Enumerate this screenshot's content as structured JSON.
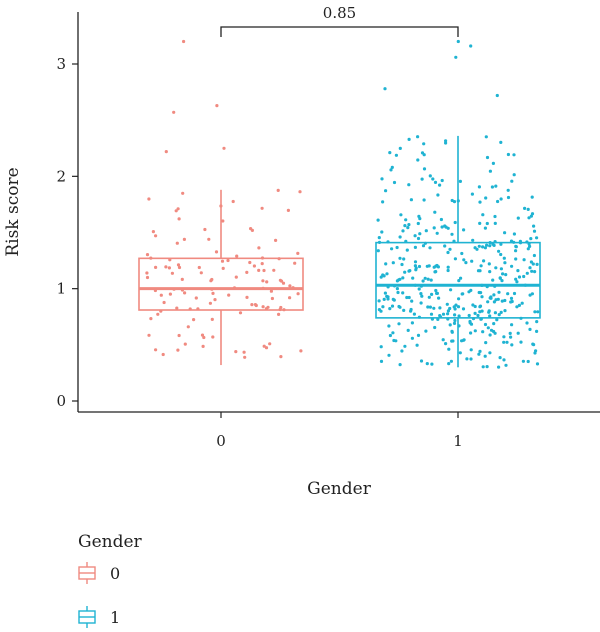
{
  "chart_data": {
    "type": "boxplot",
    "xlabel": "Gender",
    "ylabel": "Risk score",
    "categories": [
      "0",
      "1"
    ],
    "ylim": [
      -0.1,
      3.45
    ],
    "yticks": [
      0,
      1,
      2,
      3
    ],
    "grid": false,
    "legend": {
      "title": "Gender",
      "placement": "bottom-left",
      "entries": [
        "0",
        "1"
      ]
    },
    "colors": {
      "0": "#f08a80",
      "1": "#1fb3d2"
    },
    "boxes": [
      {
        "category": "0",
        "lower_whisker": 0.32,
        "q1": 0.81,
        "median": 1.0,
        "q3": 1.27,
        "upper_whisker": 1.88,
        "n_points": 120
      },
      {
        "category": "1",
        "lower_whisker": 0.3,
        "q1": 0.74,
        "median": 1.03,
        "q3": 1.41,
        "upper_whisker": 2.36,
        "n_points": 420
      }
    ],
    "outliers": [
      {
        "category": "0",
        "values": [
          2.22,
          2.25,
          2.57,
          2.63,
          3.2
        ]
      },
      {
        "category": "1",
        "values": [
          2.72,
          2.78,
          3.06,
          3.16,
          3.2
        ]
      }
    ],
    "comparison": {
      "groups": [
        "0",
        "1"
      ],
      "p_value": "0.85"
    }
  }
}
